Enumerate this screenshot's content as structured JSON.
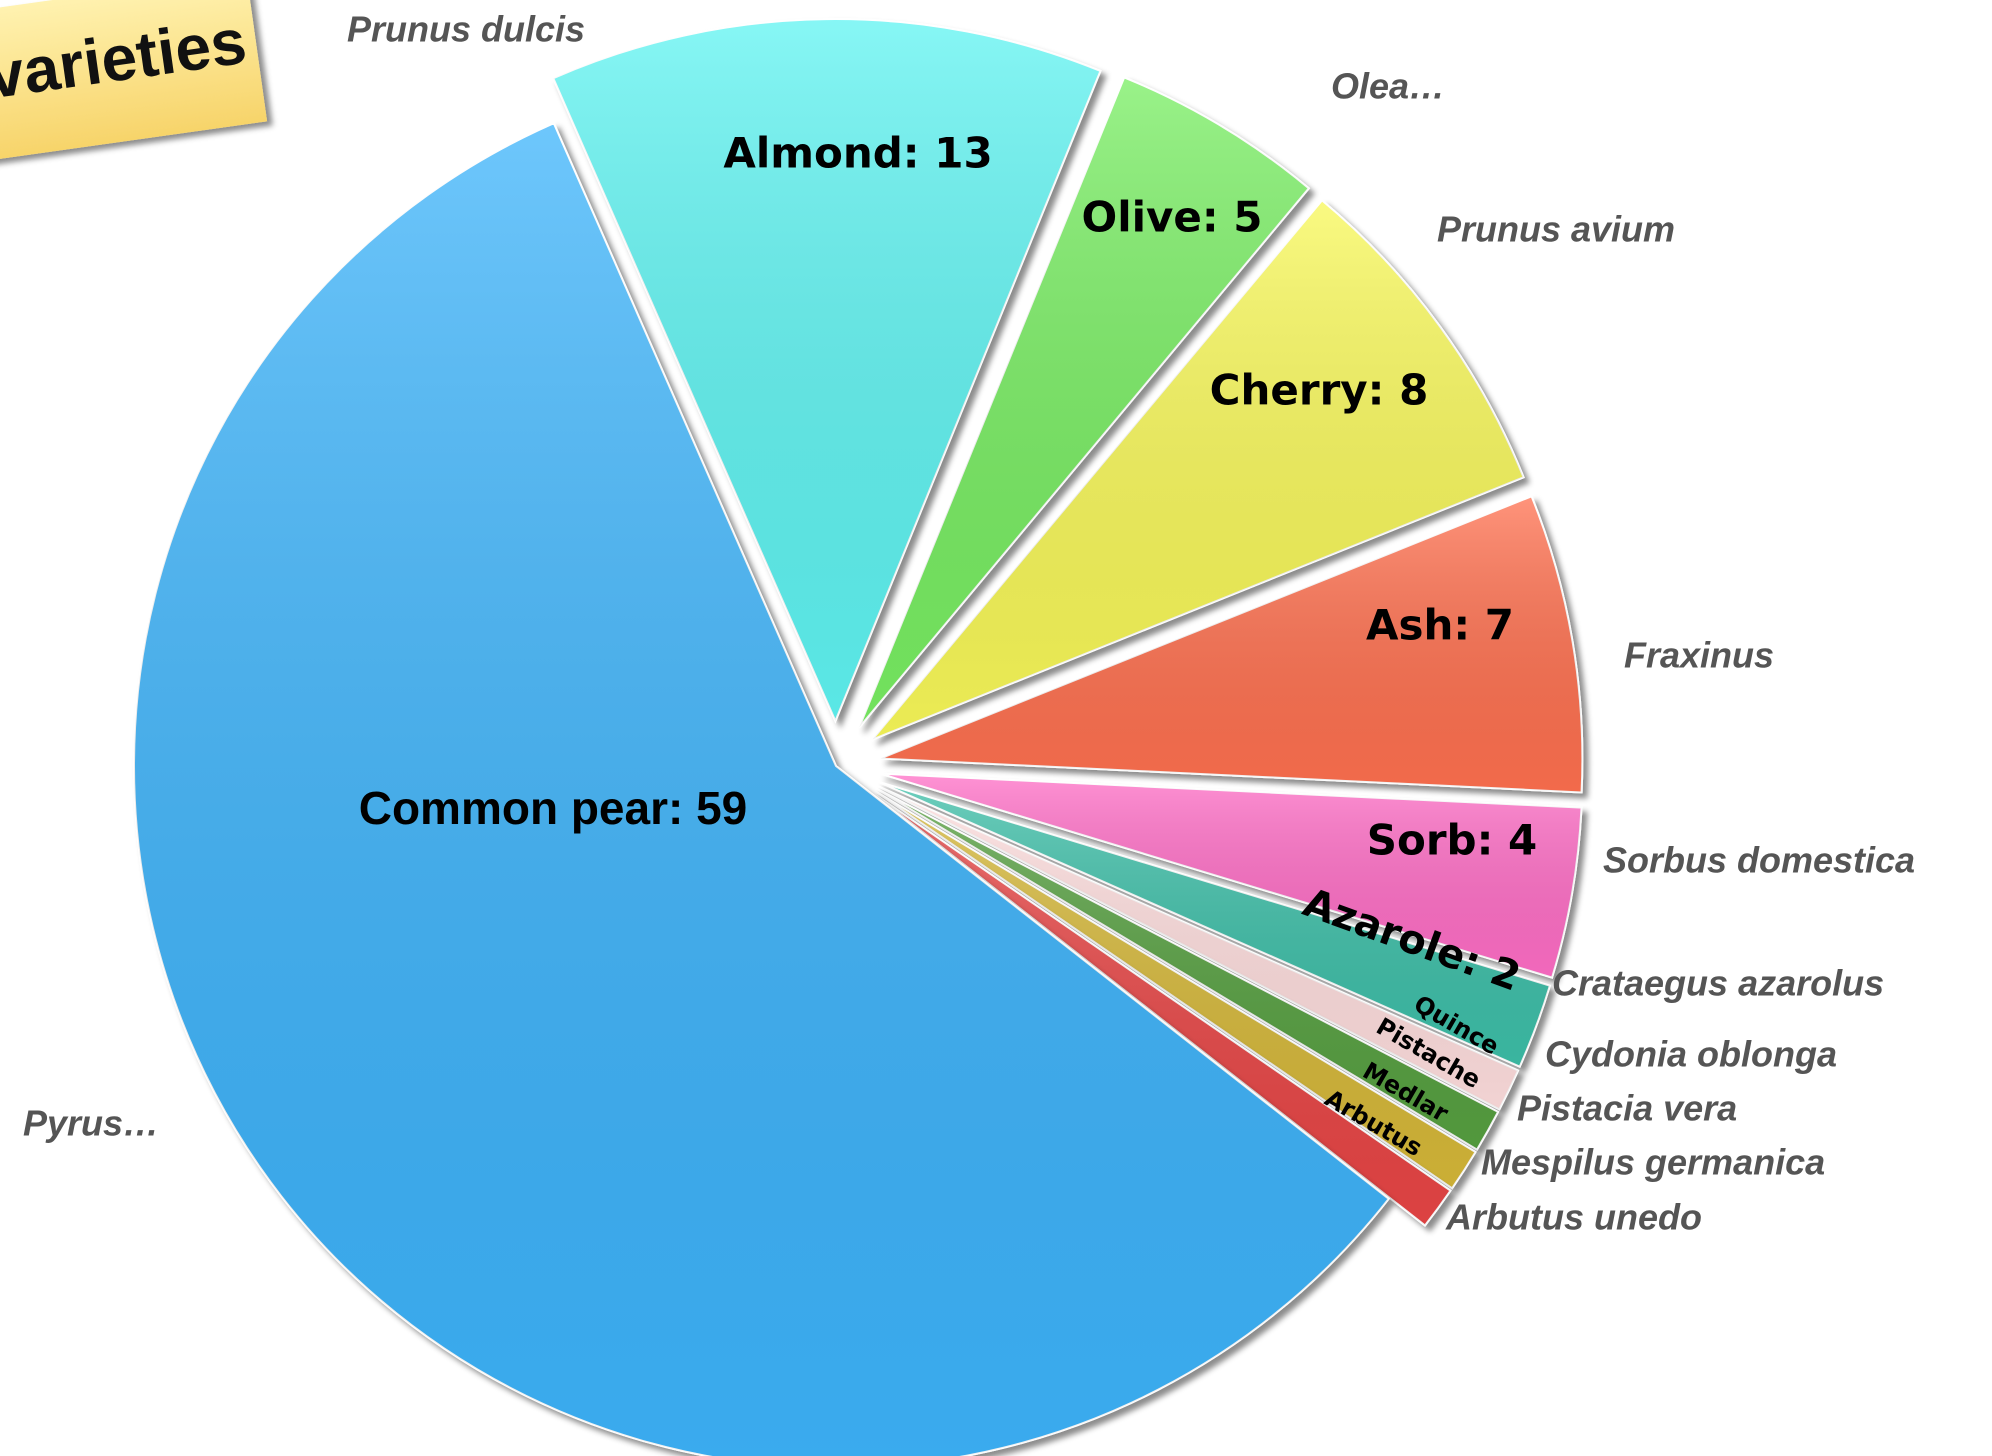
{
  "chart_data": {
    "type": "pie",
    "title": "ovarieties",
    "categories": [
      "Common pear",
      "Almond",
      "Olive",
      "Cherry",
      "Ash",
      "Sorb",
      "Azarole",
      "Quince",
      "Pistache",
      "Medlar",
      "Arbutus"
    ],
    "values": [
      59,
      13,
      5,
      8,
      7,
      4,
      2,
      1,
      1,
      1,
      1
    ],
    "value_labels": [
      "Common pear: 59",
      "Almond:  13",
      "Olive:  5",
      "Cherry:  8",
      "Ash:  7",
      "Sorb:  4",
      "Azarole:  2",
      "Quince",
      "Pistache",
      "Medlar",
      "Arbutus"
    ],
    "species": [
      "Pyrus…",
      "Prunus dulcis",
      "Olea…",
      "Prunus avium",
      "Fraxinus",
      "Sorbus domestica",
      "Crataegus azarolus",
      "Cydonia oblonga",
      "Pistacia vera",
      "Mespilus germanica",
      "Arbutus unedo"
    ],
    "colors": [
      "#3db4fb",
      "#5ff4f2",
      "#78ee62",
      "#f8f858",
      "#ff7050",
      "#ff6ec6",
      "#3dbfa8",
      "#ffdede",
      "#56a040",
      "#d6b838",
      "#e84444"
    ]
  }
}
